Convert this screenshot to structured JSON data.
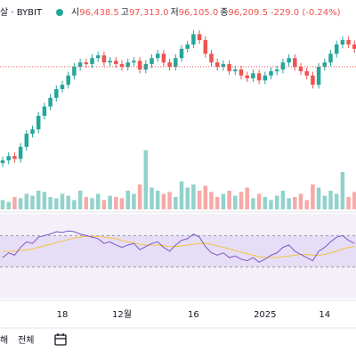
{
  "header": {
    "symbol": "살 · BYBIT",
    "open_label": "시",
    "open": "96,438.5",
    "high_label": "고",
    "high": "97,313.0",
    "low_label": "저",
    "low": "96,105.0",
    "close_label": "종",
    "close": "96,209.5",
    "change": "-229.0 (-0.24%)"
  },
  "chart_data": {
    "type": "candlestick",
    "up_color": "#26a69a",
    "down_color": "#ef5350",
    "categories": [
      null,
      null,
      null,
      null,
      null,
      null,
      null,
      null,
      null,
      null,
      "18",
      null,
      null,
      null,
      null,
      null,
      null,
      null,
      null,
      null,
      "12월",
      null,
      null,
      null,
      null,
      null,
      null,
      null,
      null,
      null,
      null,
      null,
      "16",
      null,
      null,
      null,
      null,
      null,
      null,
      null,
      null,
      null,
      null,
      null,
      "2025",
      null,
      null,
      null,
      null,
      null,
      null,
      null,
      null,
      null,
      "14",
      null,
      null,
      null,
      null,
      null
    ],
    "open": [
      78500,
      79000,
      79800,
      79300,
      81500,
      83900,
      84700,
      87200,
      88900,
      90500,
      92100,
      92900,
      94600,
      96200,
      97000,
      96700,
      97800,
      98300,
      97000,
      97300,
      96700,
      96200,
      97000,
      97300,
      95700,
      96700,
      97800,
      98600,
      97000,
      96200,
      97800,
      99500,
      100300,
      102200,
      101100,
      98600,
      97000,
      96200,
      96700,
      95400,
      95700,
      94600,
      94100,
      95000,
      93700,
      94600,
      95400,
      95700,
      97000,
      97800,
      96200,
      95400,
      94600,
      92900,
      96200,
      97000,
      98600,
      100300,
      101100,
      100300
    ],
    "high": [
      79700,
      80500,
      80500,
      82200,
      84600,
      85400,
      87900,
      89600,
      91200,
      92800,
      93600,
      95300,
      96900,
      97700,
      97700,
      98500,
      99000,
      99000,
      98000,
      98000,
      97400,
      97700,
      98000,
      98000,
      97400,
      98500,
      99300,
      99300,
      97700,
      98500,
      100200,
      101000,
      102900,
      102900,
      101800,
      99300,
      97700,
      97400,
      97400,
      96400,
      96400,
      95300,
      95700,
      95700,
      95300,
      96100,
      96400,
      97700,
      98500,
      98500,
      96900,
      96100,
      95300,
      96900,
      97700,
      99300,
      101000,
      101800,
      101800,
      101000
    ],
    "low": [
      77800,
      78300,
      78600,
      78600,
      80800,
      83200,
      84000,
      86500,
      88200,
      89800,
      91400,
      92200,
      93900,
      95500,
      96000,
      96000,
      97100,
      96300,
      96300,
      96000,
      95500,
      95500,
      96300,
      95000,
      95000,
      96000,
      97100,
      96300,
      95500,
      95500,
      97100,
      98800,
      99600,
      100400,
      97900,
      96300,
      95500,
      95500,
      94700,
      94700,
      93900,
      93400,
      93400,
      93000,
      93000,
      93900,
      94700,
      95000,
      96300,
      95500,
      94700,
      93900,
      92200,
      92200,
      95500,
      96300,
      97900,
      99600,
      99600,
      98800
    ],
    "close": [
      79000,
      79800,
      79300,
      81500,
      83900,
      84700,
      87200,
      88900,
      90500,
      92100,
      92900,
      94600,
      96200,
      97000,
      96700,
      97800,
      98300,
      97000,
      97300,
      96700,
      96200,
      97000,
      97300,
      95700,
      96700,
      97800,
      98600,
      97000,
      96200,
      97800,
      99500,
      100300,
      102200,
      101100,
      98600,
      97000,
      96200,
      96700,
      95400,
      95700,
      94600,
      94100,
      95000,
      93700,
      94600,
      95400,
      95700,
      97000,
      97800,
      96200,
      95400,
      94600,
      92900,
      96200,
      97000,
      98600,
      100300,
      101100,
      100300,
      99500
    ],
    "ylim": [
      70000,
      105200
    ],
    "last_price": 96209.5,
    "last_price_color": "#ef5350",
    "volume": [
      15,
      12,
      20,
      18,
      25,
      22,
      30,
      28,
      20,
      18,
      25,
      22,
      15,
      30,
      20,
      18,
      25,
      15,
      22,
      20,
      18,
      30,
      25,
      40,
      95,
      35,
      30,
      25,
      28,
      20,
      45,
      35,
      40,
      30,
      38,
      28,
      20,
      25,
      30,
      22,
      28,
      35,
      18,
      25,
      20,
      15,
      22,
      30,
      18,
      20,
      25,
      15,
      40,
      35,
      22,
      30,
      25,
      60,
      20,
      28
    ],
    "vlim": [
      0,
      100
    ],
    "rsi": [
      42,
      48,
      45,
      55,
      62,
      60,
      68,
      70,
      72,
      75,
      74,
      76,
      75,
      72,
      70,
      68,
      66,
      60,
      62,
      58,
      55,
      58,
      60,
      52,
      56,
      60,
      62,
      55,
      50,
      58,
      64,
      66,
      72,
      68,
      56,
      48,
      45,
      48,
      42,
      44,
      40,
      38,
      42,
      36,
      40,
      45,
      48,
      55,
      58,
      50,
      46,
      42,
      38,
      50,
      55,
      62,
      68,
      70,
      64,
      60
    ],
    "rsi_ma": [
      50,
      50,
      50,
      51,
      52,
      53,
      55,
      57,
      59,
      61,
      63,
      65,
      67,
      68,
      69,
      69,
      69,
      68,
      67,
      66,
      64,
      62,
      61,
      59,
      58,
      58,
      58,
      57,
      56,
      56,
      57,
      58,
      59,
      60,
      60,
      59,
      57,
      55,
      53,
      51,
      49,
      47,
      45,
      43,
      42,
      42,
      42,
      43,
      44,
      45,
      46,
      46,
      45,
      45,
      46,
      48,
      50,
      53,
      55,
      56
    ],
    "rsi_color": "#7e57c2",
    "rsi_ma_color": "#f5c242",
    "rsi_bands": [
      70,
      30
    ],
    "rsi_lim": [
      0,
      100
    ]
  },
  "toolbar": {
    "range_cut": "해",
    "all": "전체"
  }
}
